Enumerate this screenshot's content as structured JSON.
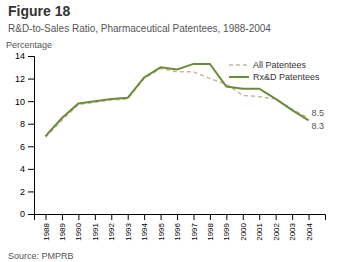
{
  "chart_data": {
    "type": "line",
    "title": "Figure 18",
    "subtitle": "R&D-to-Sales Ratio, Pharmaceutical Patentees, 1988-2004",
    "y_label": "Percentage",
    "source": "Source: PMPRB",
    "x": [
      1988,
      1989,
      1990,
      1991,
      1992,
      1993,
      1994,
      1995,
      1996,
      1997,
      1998,
      1999,
      2000,
      2001,
      2002,
      2003,
      2004
    ],
    "series": [
      {
        "name": "All Patentees",
        "color": "#c8b89a",
        "line_style": "dashed",
        "values": [
          6.8,
          8.3,
          9.7,
          9.9,
          10.1,
          10.2,
          12.0,
          12.9,
          12.6,
          12.6,
          12.0,
          11.5,
          10.5,
          10.4,
          10.2,
          9.3,
          8.5
        ],
        "value_labels": [
          null,
          null,
          null,
          null,
          null,
          null,
          null,
          null,
          null,
          null,
          null,
          null,
          null,
          null,
          null,
          null,
          "8.5"
        ]
      },
      {
        "name": "Rx&D Patentees",
        "color": "#6b8c3a",
        "line_style": "solid",
        "values": [
          6.9,
          8.5,
          9.8,
          10.0,
          10.2,
          10.3,
          12.1,
          13.0,
          12.8,
          13.3,
          13.3,
          11.3,
          11.1,
          11.1,
          10.2,
          9.2,
          8.3
        ],
        "value_labels": [
          null,
          null,
          null,
          null,
          null,
          null,
          null,
          null,
          null,
          null,
          null,
          null,
          null,
          null,
          null,
          null,
          "8.3"
        ]
      }
    ],
    "xlim": [
      1987.3,
      2005.0
    ],
    "xticks": [
      1988,
      1989,
      1990,
      1991,
      1992,
      1993,
      1994,
      1995,
      1996,
      1997,
      1998,
      1999,
      2000,
      2001,
      2002,
      2003,
      2004
    ],
    "ylim": [
      0,
      14
    ],
    "yticks": [
      0,
      2,
      4,
      6,
      8,
      10,
      12,
      14
    ],
    "grid": false,
    "legend": "upper right"
  }
}
